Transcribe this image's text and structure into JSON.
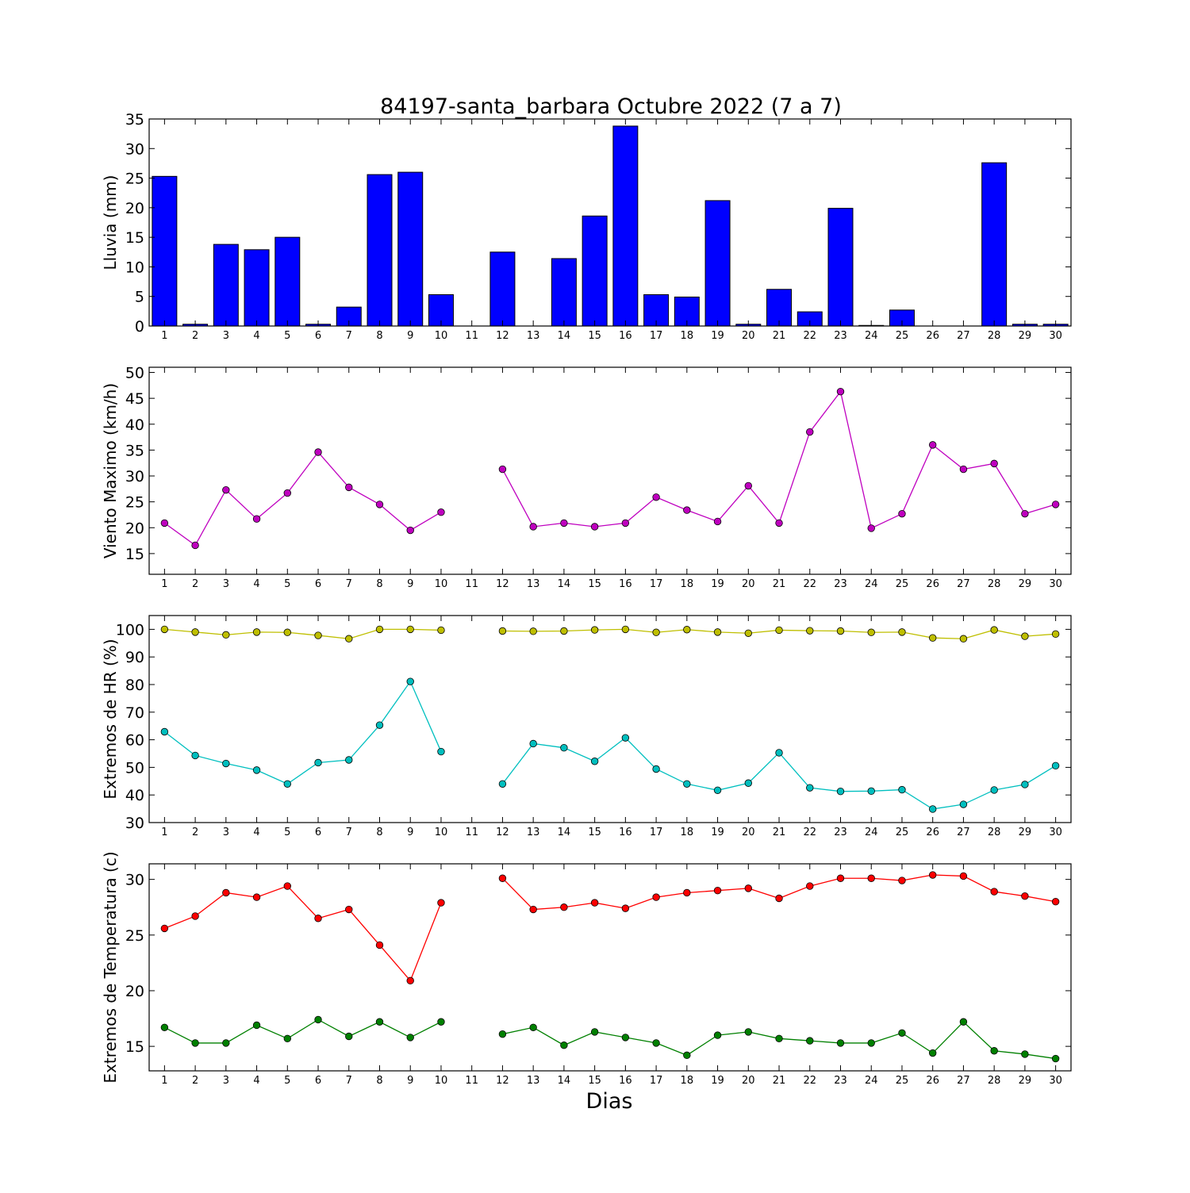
{
  "chart_data": {
    "title": "84197-santa_barbara Octubre 2022  (7 a 7)",
    "xlabel": "Dias",
    "x": [
      1,
      2,
      3,
      4,
      5,
      6,
      7,
      8,
      9,
      10,
      11,
      12,
      13,
      14,
      15,
      16,
      17,
      18,
      19,
      20,
      21,
      22,
      23,
      24,
      25,
      26,
      27,
      28,
      29,
      30
    ],
    "xlim": [
      0.5,
      30.5
    ],
    "panels": [
      {
        "type": "bar",
        "ylabel": "Lluvia (mm)",
        "ylim": [
          0,
          35
        ],
        "yticks": [
          0,
          5,
          10,
          15,
          20,
          25,
          30,
          35
        ],
        "series": [
          {
            "color": "#0000ff",
            "values": [
              25.3,
              0.3,
              13.8,
              12.9,
              15.0,
              0.3,
              3.2,
              25.6,
              26.0,
              5.3,
              0,
              12.5,
              0,
              11.4,
              18.6,
              33.8,
              5.3,
              4.9,
              21.2,
              0.3,
              6.2,
              2.4,
              19.9,
              0.1,
              2.7,
              0,
              0,
              27.6,
              0.3,
              0.3
            ]
          }
        ]
      },
      {
        "type": "line",
        "ylabel": "Viento Maximo (km/h)",
        "ylim": [
          11,
          51
        ],
        "yticks": [
          15,
          20,
          25,
          30,
          35,
          40,
          45,
          50
        ],
        "series": [
          {
            "color": "#bf00bf",
            "values": [
              20.9,
              16.6,
              27.3,
              21.7,
              26.7,
              34.6,
              27.8,
              24.5,
              19.5,
              23.0,
              null,
              31.3,
              20.2,
              20.9,
              20.2,
              20.9,
              25.9,
              23.4,
              21.2,
              28.1,
              20.9,
              38.5,
              46.3,
              19.9,
              22.7,
              36.0,
              31.3,
              32.4,
              22.7,
              24.5
            ]
          }
        ]
      },
      {
        "type": "line",
        "ylabel": "Extremos de HR (%)",
        "ylim": [
          30,
          105
        ],
        "yticks": [
          30,
          40,
          50,
          60,
          70,
          80,
          90,
          100
        ],
        "series": [
          {
            "color": "#bfbf00",
            "values": [
              100,
              99,
              98,
              99,
              98.9,
              97.8,
              96.6,
              100,
              100,
              99.7,
              null,
              99.4,
              99.3,
              99.4,
              99.8,
              100,
              98.9,
              99.9,
              99,
              98.6,
              99.7,
              99.5,
              99.4,
              98.9,
              99,
              96.9,
              96.6,
              99.8,
              97.5,
              98.3
            ]
          },
          {
            "color": "#00bfbf",
            "values": [
              62.9,
              54.3,
              51.4,
              49,
              44,
              51.7,
              52.7,
              65.3,
              81.1,
              55.7,
              null,
              44,
              58.6,
              57.1,
              52.2,
              60.7,
              49.4,
              44,
              41.7,
              44.3,
              55.3,
              42.6,
              41.3,
              41.4,
              41.9,
              34.9,
              36.6,
              41.8,
              43.8,
              50.6
            ]
          }
        ]
      },
      {
        "type": "line",
        "ylabel": "Extremos de Temperatura (c)",
        "ylim": [
          12.8,
          31.4
        ],
        "yticks": [
          15,
          20,
          25,
          30
        ],
        "series": [
          {
            "color": "#ff0000",
            "values": [
              25.6,
              26.7,
              28.8,
              28.4,
              29.4,
              26.5,
              27.3,
              24.1,
              20.9,
              27.9,
              null,
              30.1,
              27.3,
              27.5,
              27.9,
              27.4,
              28.4,
              28.8,
              29,
              29.2,
              28.3,
              29.4,
              30.1,
              30.1,
              29.9,
              30.4,
              30.3,
              28.9,
              28.5,
              28
            ]
          },
          {
            "color": "#008000",
            "values": [
              16.7,
              15.3,
              15.3,
              16.9,
              15.7,
              17.4,
              15.9,
              17.2,
              15.8,
              17.2,
              null,
              16.1,
              16.7,
              15.1,
              16.3,
              15.8,
              15.3,
              14.2,
              16,
              16.3,
              15.7,
              15.5,
              15.3,
              15.3,
              16.2,
              14.4,
              17.2,
              14.6,
              14.3,
              13.9
            ]
          }
        ]
      }
    ]
  }
}
